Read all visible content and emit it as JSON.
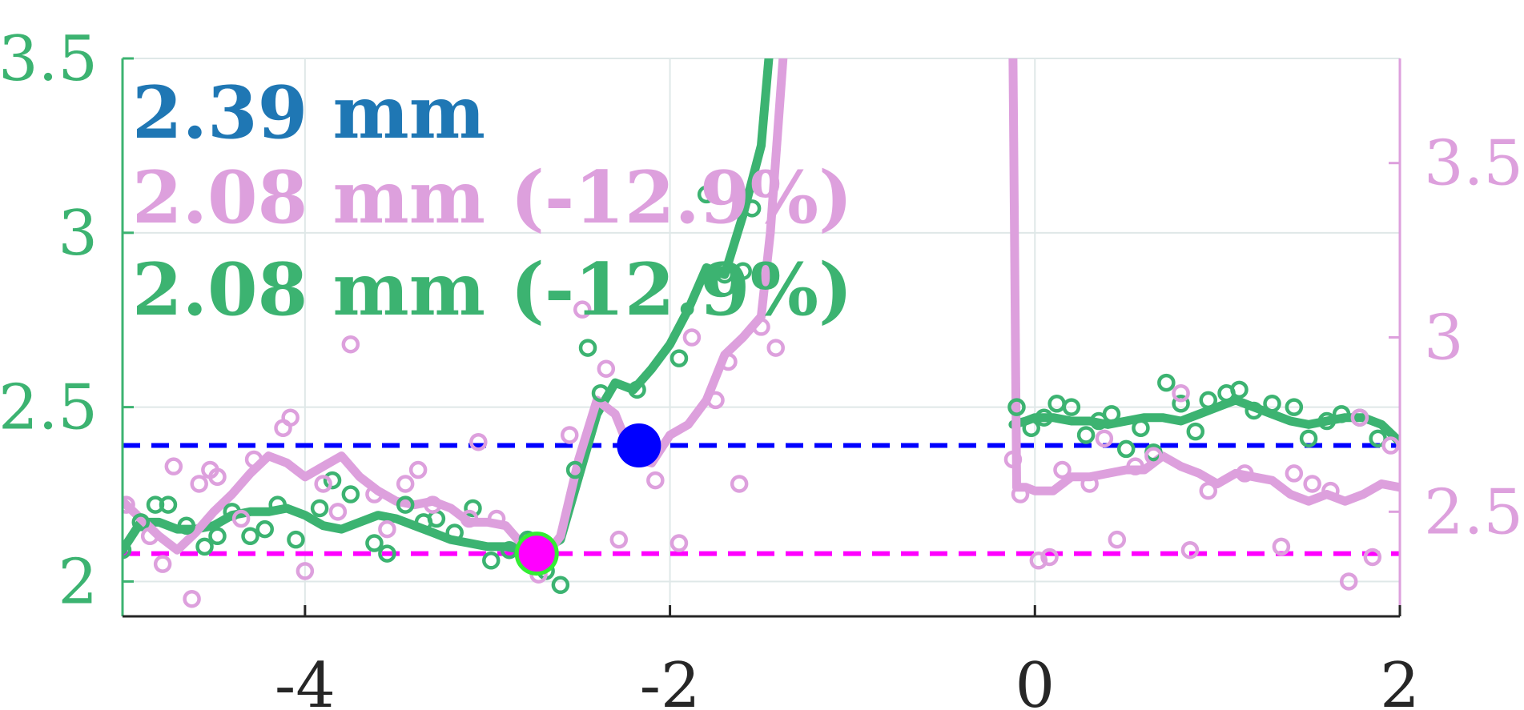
{
  "chart_data": {
    "type": "line",
    "x_axis": {
      "range": [
        -5,
        2
      ],
      "ticks": [
        -4,
        -2,
        0,
        2
      ],
      "tick_labels": [
        "-4",
        "-2",
        "0",
        "2"
      ]
    },
    "y_left": {
      "range": [
        1.9,
        3.5
      ],
      "ticks": [
        2,
        2.5,
        3,
        3.5
      ],
      "tick_labels": [
        "2",
        "2.5",
        "3",
        "3.5"
      ],
      "color": "#3cb371"
    },
    "y_right": {
      "range": [
        2.2,
        3.8
      ],
      "ticks": [
        2.5,
        3,
        3.5
      ],
      "tick_labels": [
        "2.5",
        "3",
        "3.5"
      ],
      "color": "#dda0dd"
    },
    "grid": true,
    "legend_entries": [
      {
        "label": "2.39 mm",
        "color": "#1f77b4"
      },
      {
        "label": "2.08 mm (-12.9%)",
        "color": "#dda0dd"
      },
      {
        "label": "2.08 mm (-12.9%)",
        "color": "#3cb371"
      }
    ],
    "reference_lines": [
      {
        "y": 2.39,
        "color": "#0000ff",
        "style": "dashed"
      },
      {
        "y": 2.08,
        "color": "#ff00ff",
        "style": "dashed"
      }
    ],
    "markers": [
      {
        "x": -2.17,
        "y": 2.39,
        "fill": "#0000ff",
        "edge": "#0000ff"
      },
      {
        "x": -2.73,
        "y": 2.08,
        "fill": "#ff00ff",
        "edge": "#33ee33"
      }
    ],
    "series": [
      {
        "color": "#3cb371",
        "axis": "left",
        "segments": [
          {
            "x": [
              -5.0,
              -4.9,
              -4.8,
              -4.7,
              -4.6,
              -4.5,
              -4.4,
              -4.3,
              -4.2,
              -4.1,
              -4.0,
              -3.9,
              -3.8,
              -3.7,
              -3.6,
              -3.5,
              -3.4,
              -3.3,
              -3.2,
              -3.1,
              -3.0,
              -2.9,
              -2.8,
              -2.7,
              -2.6,
              -2.5,
              -2.4,
              -2.3,
              -2.2,
              -2.1,
              -2.0,
              -1.9,
              -1.8,
              -1.7,
              -1.6,
              -1.5,
              -1.45
            ],
            "y": [
              2.09,
              2.17,
              2.17,
              2.15,
              2.15,
              2.16,
              2.19,
              2.2,
              2.2,
              2.21,
              2.19,
              2.16,
              2.15,
              2.17,
              2.19,
              2.18,
              2.16,
              2.14,
              2.12,
              2.11,
              2.1,
              2.1,
              2.09,
              2.09,
              2.12,
              2.3,
              2.48,
              2.57,
              2.55,
              2.61,
              2.68,
              2.78,
              2.9,
              2.88,
              3.05,
              3.25,
              3.55
            ]
          },
          {
            "x": [
              -0.12,
              -0.05,
              0.0,
              0.1,
              0.2,
              0.3,
              0.4,
              0.5,
              0.6,
              0.7,
              0.8,
              0.9,
              1.0,
              1.1,
              1.2,
              1.3,
              1.4,
              1.5,
              1.6,
              1.7,
              1.8,
              1.9,
              2.0
            ],
            "y": [
              2.45,
              2.46,
              2.47,
              2.47,
              2.46,
              2.46,
              2.45,
              2.46,
              2.47,
              2.47,
              2.46,
              2.48,
              2.5,
              2.52,
              2.5,
              2.48,
              2.46,
              2.45,
              2.46,
              2.47,
              2.47,
              2.45,
              2.4
            ]
          }
        ],
        "points": [
          {
            "x": -5.0,
            "y": 2.09
          },
          {
            "x": -4.9,
            "y": 2.17
          },
          {
            "x": -4.82,
            "y": 2.22
          },
          {
            "x": -4.75,
            "y": 2.22
          },
          {
            "x": -4.65,
            "y": 2.16
          },
          {
            "x": -4.55,
            "y": 2.1
          },
          {
            "x": -4.48,
            "y": 2.13
          },
          {
            "x": -4.4,
            "y": 2.2
          },
          {
            "x": -4.3,
            "y": 2.13
          },
          {
            "x": -4.22,
            "y": 2.15
          },
          {
            "x": -4.15,
            "y": 2.22
          },
          {
            "x": -4.05,
            "y": 2.12
          },
          {
            "x": -3.92,
            "y": 2.21
          },
          {
            "x": -3.85,
            "y": 2.29
          },
          {
            "x": -3.75,
            "y": 2.25
          },
          {
            "x": -3.62,
            "y": 2.11
          },
          {
            "x": -3.55,
            "y": 2.08
          },
          {
            "x": -3.45,
            "y": 2.22
          },
          {
            "x": -3.35,
            "y": 2.17
          },
          {
            "x": -3.28,
            "y": 2.18
          },
          {
            "x": -3.18,
            "y": 2.14
          },
          {
            "x": -3.08,
            "y": 2.21
          },
          {
            "x": -2.98,
            "y": 2.06
          },
          {
            "x": -2.88,
            "y": 2.09
          },
          {
            "x": -2.78,
            "y": 2.12
          },
          {
            "x": -2.68,
            "y": 2.03
          },
          {
            "x": -2.6,
            "y": 1.99
          },
          {
            "x": -2.52,
            "y": 2.32
          },
          {
            "x": -2.45,
            "y": 2.67
          },
          {
            "x": -2.38,
            "y": 2.54
          },
          {
            "x": -2.18,
            "y": 2.55
          },
          {
            "x": -1.95,
            "y": 2.64
          },
          {
            "x": -1.8,
            "y": 3.11
          },
          {
            "x": -1.7,
            "y": 2.88
          },
          {
            "x": -1.6,
            "y": 2.89
          },
          {
            "x": -1.55,
            "y": 3.07
          },
          {
            "x": -0.1,
            "y": 2.5
          },
          {
            "x": -0.02,
            "y": 2.44
          },
          {
            "x": 0.05,
            "y": 2.47
          },
          {
            "x": 0.12,
            "y": 2.51
          },
          {
            "x": 0.2,
            "y": 2.5
          },
          {
            "x": 0.28,
            "y": 2.42
          },
          {
            "x": 0.35,
            "y": 2.46
          },
          {
            "x": 0.42,
            "y": 2.48
          },
          {
            "x": 0.5,
            "y": 2.38
          },
          {
            "x": 0.58,
            "y": 2.44
          },
          {
            "x": 0.65,
            "y": 2.37
          },
          {
            "x": 0.72,
            "y": 2.57
          },
          {
            "x": 0.8,
            "y": 2.51
          },
          {
            "x": 0.88,
            "y": 2.43
          },
          {
            "x": 0.95,
            "y": 2.52
          },
          {
            "x": 1.05,
            "y": 2.54
          },
          {
            "x": 1.12,
            "y": 2.55
          },
          {
            "x": 1.2,
            "y": 2.49
          },
          {
            "x": 1.3,
            "y": 2.51
          },
          {
            "x": 1.42,
            "y": 2.5
          },
          {
            "x": 1.5,
            "y": 2.41
          },
          {
            "x": 1.6,
            "y": 2.46
          },
          {
            "x": 1.68,
            "y": 2.48
          },
          {
            "x": 1.78,
            "y": 2.47
          },
          {
            "x": 1.88,
            "y": 2.41
          }
        ]
      },
      {
        "color": "#dda0dd",
        "axis": "right",
        "segments": [
          {
            "x": [
              -5.0,
              -4.9,
              -4.8,
              -4.7,
              -4.6,
              -4.5,
              -4.4,
              -4.3,
              -4.2,
              -4.1,
              -4.0,
              -3.9,
              -3.8,
              -3.7,
              -3.6,
              -3.5,
              -3.4,
              -3.3,
              -3.2,
              -3.1,
              -3.0,
              -2.9,
              -2.8,
              -2.7,
              -2.6,
              -2.5,
              -2.4,
              -2.3,
              -2.2,
              -2.1,
              -2.0,
              -1.9,
              -1.8,
              -1.7,
              -1.6,
              -1.5,
              -1.45,
              -1.38
            ],
            "y": [
              2.53,
              2.48,
              2.43,
              2.39,
              2.44,
              2.5,
              2.55,
              2.61,
              2.66,
              2.64,
              2.6,
              2.63,
              2.66,
              2.6,
              2.56,
              2.53,
              2.52,
              2.53,
              2.51,
              2.47,
              2.47,
              2.46,
              2.4,
              2.36,
              2.43,
              2.65,
              2.82,
              2.78,
              2.65,
              2.64,
              2.72,
              2.75,
              2.82,
              2.95,
              3.0,
              3.06,
              3.3,
              3.8
            ]
          },
          {
            "x": [
              -0.12,
              -0.1,
              -0.05,
              0.0,
              0.1,
              0.2,
              0.3,
              0.4,
              0.5,
              0.6,
              0.7,
              0.8,
              0.9,
              1.0,
              1.1,
              1.2,
              1.3,
              1.4,
              1.5,
              1.6,
              1.7,
              1.8,
              1.9,
              2.0
            ],
            "y": [
              3.8,
              2.57,
              2.57,
              2.56,
              2.56,
              2.6,
              2.6,
              2.61,
              2.62,
              2.62,
              2.66,
              2.63,
              2.61,
              2.58,
              2.61,
              2.6,
              2.59,
              2.55,
              2.53,
              2.55,
              2.53,
              2.55,
              2.58,
              2.57
            ]
          }
        ],
        "points": [
          {
            "x": -4.98,
            "y": 2.52
          },
          {
            "x": -4.85,
            "y": 2.43
          },
          {
            "x": -4.78,
            "y": 2.35
          },
          {
            "x": -4.72,
            "y": 2.63
          },
          {
            "x": -4.62,
            "y": 2.25
          },
          {
            "x": -4.58,
            "y": 2.58
          },
          {
            "x": -4.52,
            "y": 2.62
          },
          {
            "x": -4.48,
            "y": 2.6
          },
          {
            "x": -4.35,
            "y": 2.48
          },
          {
            "x": -4.28,
            "y": 2.65
          },
          {
            "x": -4.12,
            "y": 2.74
          },
          {
            "x": -4.08,
            "y": 2.77
          },
          {
            "x": -4.0,
            "y": 2.33
          },
          {
            "x": -3.9,
            "y": 2.58
          },
          {
            "x": -3.82,
            "y": 2.5
          },
          {
            "x": -3.75,
            "y": 2.98
          },
          {
            "x": -3.62,
            "y": 2.55
          },
          {
            "x": -3.55,
            "y": 2.45
          },
          {
            "x": -3.45,
            "y": 2.58
          },
          {
            "x": -3.38,
            "y": 2.62
          },
          {
            "x": -3.3,
            "y": 2.52
          },
          {
            "x": -3.1,
            "y": 2.48
          },
          {
            "x": -3.05,
            "y": 2.7
          },
          {
            "x": -2.95,
            "y": 2.48
          },
          {
            "x": -2.72,
            "y": 2.32
          },
          {
            "x": -2.55,
            "y": 2.72
          },
          {
            "x": -2.48,
            "y": 3.08
          },
          {
            "x": -2.35,
            "y": 2.91
          },
          {
            "x": -2.28,
            "y": 2.42
          },
          {
            "x": -2.08,
            "y": 2.59
          },
          {
            "x": -1.95,
            "y": 2.41
          },
          {
            "x": -1.88,
            "y": 3.0
          },
          {
            "x": -1.75,
            "y": 2.82
          },
          {
            "x": -1.68,
            "y": 2.93
          },
          {
            "x": -1.62,
            "y": 2.58
          },
          {
            "x": -1.5,
            "y": 3.03
          },
          {
            "x": -1.42,
            "y": 2.97
          },
          {
            "x": -0.12,
            "y": 2.65
          },
          {
            "x": -0.08,
            "y": 2.55
          },
          {
            "x": 0.02,
            "y": 2.36
          },
          {
            "x": 0.08,
            "y": 2.37
          },
          {
            "x": 0.15,
            "y": 2.62
          },
          {
            "x": 0.3,
            "y": 2.58
          },
          {
            "x": 0.38,
            "y": 2.71
          },
          {
            "x": 0.45,
            "y": 2.42
          },
          {
            "x": 0.55,
            "y": 2.63
          },
          {
            "x": 0.65,
            "y": 2.66
          },
          {
            "x": 0.8,
            "y": 2.84
          },
          {
            "x": 0.85,
            "y": 2.39
          },
          {
            "x": 0.95,
            "y": 2.56
          },
          {
            "x": 1.15,
            "y": 2.61
          },
          {
            "x": 1.35,
            "y": 2.4
          },
          {
            "x": 1.42,
            "y": 2.61
          },
          {
            "x": 1.52,
            "y": 2.58
          },
          {
            "x": 1.62,
            "y": 2.56
          },
          {
            "x": 1.72,
            "y": 2.3
          },
          {
            "x": 1.78,
            "y": 2.77
          },
          {
            "x": 1.85,
            "y": 2.37
          },
          {
            "x": 1.95,
            "y": 2.69
          }
        ]
      }
    ]
  }
}
